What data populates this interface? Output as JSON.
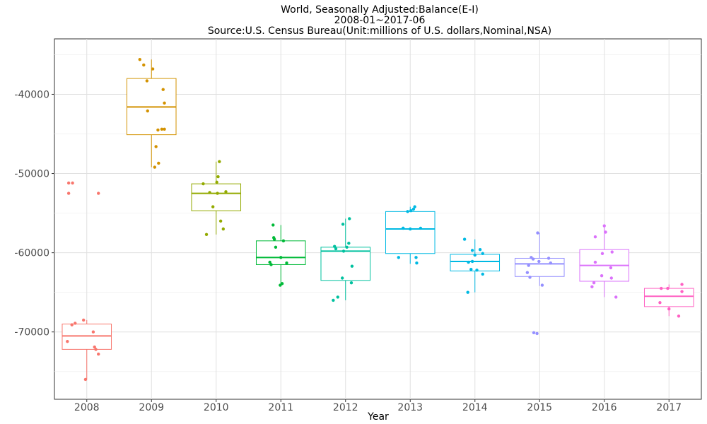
{
  "chart_data": {
    "type": "box",
    "title": "World, Seasonally Adjusted:Balance(E-I)",
    "subtitle": "2008-01~2017-06",
    "source": "Source:U.S. Census Bureau(Unit:millions of U.S. dollars,Nominal,NSA)",
    "xlabel": "Year",
    "ylabel": "",
    "ylim": [
      -78500,
      -33000
    ],
    "yticks": [
      -70000,
      -60000,
      -50000,
      -40000
    ],
    "ytick_labels": [
      "-70000",
      "-60000",
      "-50000",
      "-40000"
    ],
    "grid": true,
    "legend": "none",
    "categories": [
      "2008",
      "2009",
      "2010",
      "2011",
      "2012",
      "2013",
      "2014",
      "2015",
      "2016",
      "2017"
    ],
    "colors": [
      "#F8766D",
      "#D39200",
      "#93AA00",
      "#00BA38",
      "#00C19F",
      "#00B9E3",
      "#00B9E3",
      "#9590FF",
      "#DB72FB",
      "#FF61C3"
    ],
    "boxes": [
      {
        "year": "2008",
        "min": -76000,
        "q1": -72200,
        "median": -70500,
        "q3": -69000,
        "max": -68500
      },
      {
        "year": "2009",
        "min": -49200,
        "q1": -45100,
        "median": -41600,
        "q3": -38000,
        "max": -35600
      },
      {
        "year": "2010",
        "min": -57700,
        "q1": -54700,
        "median": -52500,
        "q3": -51300,
        "max": -48500
      },
      {
        "year": "2011",
        "min": -64000,
        "q1": -61500,
        "median": -60600,
        "q3": -58500,
        "max": -56500
      },
      {
        "year": "2012",
        "min": -66000,
        "q1": -63500,
        "median": -59800,
        "q3": -59300,
        "max": -55700
      },
      {
        "year": "2013",
        "min": -61400,
        "q1": -60100,
        "median": -57000,
        "q3": -54800,
        "max": -54200
      },
      {
        "year": "2014",
        "min": -65000,
        "q1": -62300,
        "median": -61100,
        "q3": -60200,
        "max": -58300
      },
      {
        "year": "2015",
        "min": -64200,
        "q1": -63000,
        "median": -61400,
        "q3": -60700,
        "max": -57500
      },
      {
        "year": "2016",
        "min": -65600,
        "q1": -63600,
        "median": -61600,
        "q3": -59600,
        "max": -56600
      },
      {
        "year": "2017",
        "min": -68000,
        "q1": -66800,
        "median": -65500,
        "q3": -64500,
        "max": -64000
      }
    ],
    "points": [
      {
        "year": "2008",
        "x_offset": [
          -0.28,
          -0.28,
          -0.22,
          0.18,
          -0.05,
          -0.18,
          -0.23,
          0.1,
          0.12,
          0.14,
          0.18,
          -0.02,
          -0.3
        ],
        "values": [
          -51200,
          -52500,
          -51200,
          -52500,
          -68500,
          -68900,
          -69100,
          -70000,
          -71900,
          -72200,
          -72800,
          -76000,
          -71200
        ]
      },
      {
        "year": "2009",
        "x_offset": [
          -0.18,
          -0.12,
          -0.07,
          0.02,
          0.18,
          0.2,
          -0.06,
          0.16,
          0.1,
          0.07,
          0.11,
          0.05,
          0.2
        ],
        "values": [
          -35600,
          -36300,
          -38300,
          -36800,
          -39400,
          -41100,
          -42100,
          -44400,
          -44500,
          -46600,
          -48700,
          -49200,
          -44400
        ]
      },
      {
        "year": "2010",
        "x_offset": [
          0.05,
          0.03,
          0.01,
          -0.2,
          -0.1,
          0.02,
          0.15,
          -0.05,
          0.07,
          0.11,
          -0.15
        ],
        "values": [
          -48500,
          -50400,
          -51100,
          -51300,
          -52400,
          -52500,
          -52300,
          -54200,
          -56000,
          -57000,
          -57700
        ]
      },
      {
        "year": "2011",
        "x_offset": [
          -0.12,
          -0.11,
          -0.1,
          -0.08,
          0.0,
          -0.17,
          -0.15,
          0.09,
          0.02,
          -0.01,
          0.04
        ],
        "values": [
          -56500,
          -58100,
          -58300,
          -59300,
          -60600,
          -61200,
          -61500,
          -61300,
          -63900,
          -64100,
          -58500
        ]
      },
      {
        "year": "2012",
        "x_offset": [
          0.06,
          -0.04,
          0.05,
          -0.17,
          -0.15,
          0.02,
          -0.05,
          0.1,
          -0.12,
          -0.19,
          0.09,
          -0.03
        ],
        "values": [
          -55700,
          -56400,
          -58800,
          -59200,
          -59500,
          -59300,
          -63200,
          -61700,
          -65600,
          -66000,
          -63800,
          -59800
        ]
      },
      {
        "year": "2013",
        "x_offset": [
          0.07,
          0.05,
          0.01,
          -0.04,
          -0.11,
          -0.11,
          0.09,
          0.1,
          -0.18,
          0.0,
          0.16
        ],
        "values": [
          -54200,
          -54500,
          -54700,
          -54800,
          -56900,
          -56900,
          -60600,
          -61300,
          -60600,
          -57000,
          -56900
        ]
      },
      {
        "year": "2014",
        "x_offset": [
          -0.16,
          -0.04,
          0.08,
          0.12,
          0.0,
          -0.04,
          -0.1,
          -0.06,
          0.03,
          0.12,
          -0.11
        ],
        "values": [
          -58300,
          -59700,
          -59600,
          -60100,
          -60300,
          -61100,
          -61200,
          -62100,
          -62200,
          -62700,
          -65000
        ]
      },
      {
        "year": "2015",
        "x_offset": [
          -0.03,
          -0.13,
          -0.1,
          -0.01,
          0.14,
          -0.17,
          -0.15,
          0.04,
          -0.09,
          -0.04,
          0.17,
          -0.19
        ],
        "values": [
          -57500,
          -60600,
          -60800,
          -61100,
          -60700,
          -61600,
          -63100,
          -64100,
          -70100,
          -70200,
          -61300,
          -62500
        ]
      },
      {
        "year": "2016",
        "x_offset": [
          0.0,
          0.02,
          -0.14,
          -0.03,
          -0.14,
          0.12,
          0.1,
          -0.04,
          -0.16,
          -0.19,
          0.11,
          0.18
        ],
        "values": [
          -56600,
          -57400,
          -58000,
          -60100,
          -61200,
          -59900,
          -61900,
          -62900,
          -63800,
          -64300,
          -63200,
          -65600
        ]
      },
      {
        "year": "2017",
        "x_offset": [
          0.2,
          -0.12,
          -0.02,
          -0.14,
          0.0,
          0.15,
          0.2
        ],
        "values": [
          -64000,
          -64500,
          -64500,
          -66300,
          -67100,
          -68000,
          -64900
        ]
      }
    ]
  }
}
